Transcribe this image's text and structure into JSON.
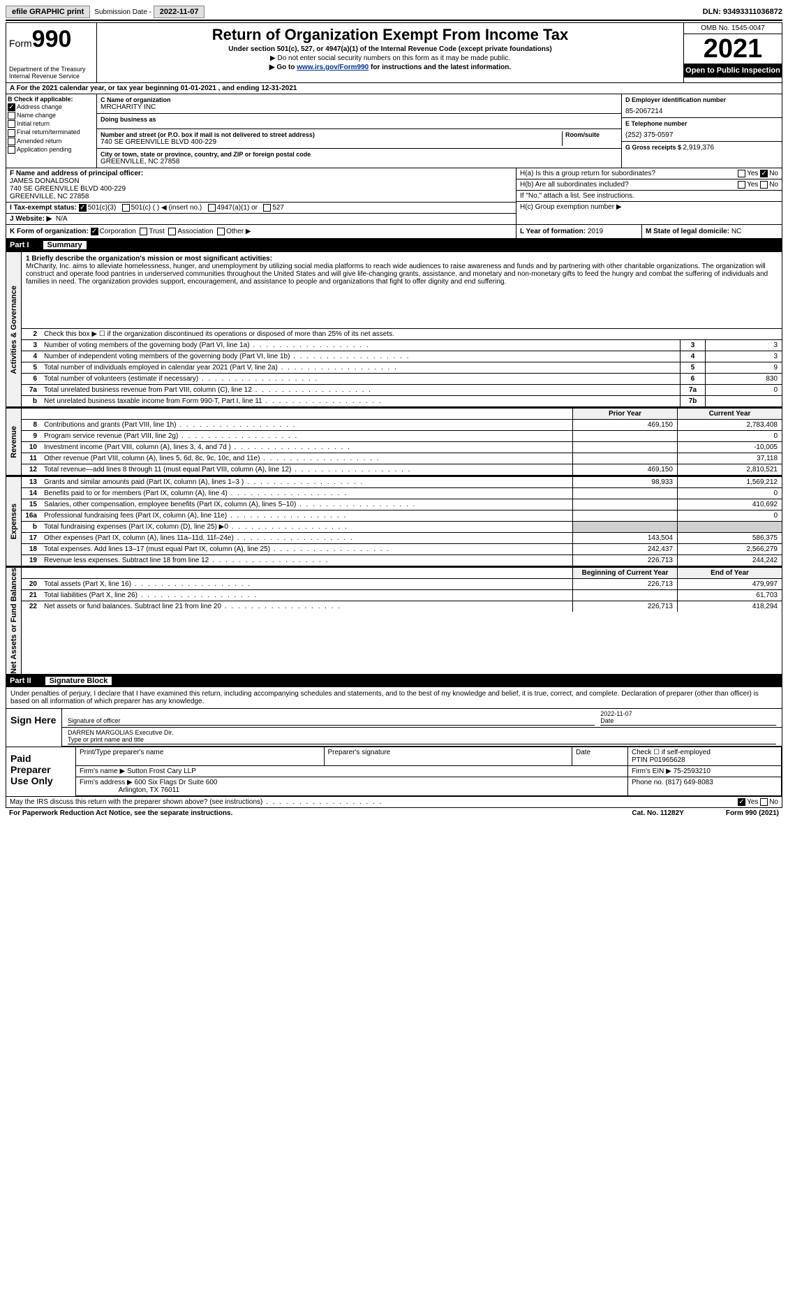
{
  "topbar": {
    "efile": "efile GRAPHIC print",
    "sub_lbl": "Submission Date - ",
    "sub_date": "2022-11-07",
    "dln_lbl": "DLN: ",
    "dln": "93493311036872"
  },
  "header": {
    "form_prefix": "Form",
    "form_num": "990",
    "dept": "Department of the Treasury\nInternal Revenue Service",
    "title": "Return of Organization Exempt From Income Tax",
    "sub1": "Under section 501(c), 527, or 4947(a)(1) of the Internal Revenue Code (except private foundations)",
    "sub2": "▶ Do not enter social security numbers on this form as it may be made public.",
    "sub3_pre": "▶ Go to ",
    "sub3_link": "www.irs.gov/Form990",
    "sub3_post": " for instructions and the latest information.",
    "omb": "OMB No. 1545-0047",
    "year": "2021",
    "inspect": "Open to Public Inspection"
  },
  "line_a": "A For the 2021 calendar year, or tax year beginning 01-01-2021  , and ending 12-31-2021",
  "col_b": {
    "hdr": "B Check if applicable:",
    "addr": "Address change",
    "name": "Name change",
    "init": "Initial return",
    "final": "Final return/terminated",
    "amend": "Amended return",
    "app": "Application pending"
  },
  "col_c": {
    "name_lbl": "C Name of organization",
    "name": "MRCHARITY INC",
    "dba_lbl": "Doing business as",
    "dba": "",
    "addr_lbl": "Number and street (or P.O. box if mail is not delivered to street address)",
    "addr": "740 SE GREENVILLE BLVD 400-229",
    "room_lbl": "Room/suite",
    "city_lbl": "City or town, state or province, country, and ZIP or foreign postal code",
    "city": "GREENVILLE, NC  27858"
  },
  "col_d": {
    "ein_lbl": "D Employer identification number",
    "ein": "85-2067214",
    "tel_lbl": "E Telephone number",
    "tel": "(252) 375-0597",
    "gross_lbl": "G Gross receipts $ ",
    "gross": "2,919,376"
  },
  "f": {
    "lbl": "F  Name and address of principal officer:",
    "name": "JAMES DONALDSON",
    "addr1": "740 SE GREENVILLE BLVD 400-229",
    "addr2": "GREENVILLE, NC  27858"
  },
  "h": {
    "a": "H(a)  Is this a group return for subordinates?",
    "b": "H(b)  Are all subordinates included?",
    "c": "H(c)  Group exemption number ▶",
    "note": "If \"No,\" attach a list. See instructions.",
    "yes": "Yes",
    "no": "No"
  },
  "i": {
    "lbl": "I    Tax-exempt status:",
    "o1": "501(c)(3)",
    "o2": "501(c) (  ) ◀ (insert no.)",
    "o3": "4947(a)(1) or",
    "o4": "527"
  },
  "j": {
    "lbl": "J   Website: ▶",
    "val": "N/A"
  },
  "k": {
    "lbl": "K Form of organization:",
    "corp": "Corporation",
    "trust": "Trust",
    "assoc": "Association",
    "other": "Other ▶"
  },
  "l": {
    "lbl": "L Year of formation: ",
    "val": "2019"
  },
  "m": {
    "lbl": "M State of legal domicile: ",
    "val": "NC"
  },
  "part1": {
    "hdr": "Part I",
    "ttl": "Summary",
    "tabs": {
      "ag": "Activities & Governance",
      "rev": "Revenue",
      "exp": "Expenses",
      "net": "Net Assets or Fund Balances"
    },
    "q1": "1  Briefly describe the organization's mission or most significant activities:",
    "mission": "MrCharity, Inc. aims to alleviate homelessness, hunger, and unemployment by utilizing social media platforms to reach wide audiences to raise awareness and funds and by partnering with other charitable organizations. The organization will construct and operate food pantries in underserved communities throughout the United States and will give life-changing grants, assistance, and monetary and non-monetary gifts to feed the hungry and combat the suffering of individuals and families in need. The organization provides support, encouragement, and assistance to people and organizations that fight to offer dignity and end suffering.",
    "q2": "Check this box ▶ ☐ if the organization discontinued its operations or disposed of more than 25% of its net assets.",
    "rows_ag": [
      {
        "n": "3",
        "d": "Number of voting members of the governing body (Part VI, line 1a)",
        "b": "3",
        "v": "3"
      },
      {
        "n": "4",
        "d": "Number of independent voting members of the governing body (Part VI, line 1b)",
        "b": "4",
        "v": "3"
      },
      {
        "n": "5",
        "d": "Total number of individuals employed in calendar year 2021 (Part V, line 2a)",
        "b": "5",
        "v": "9"
      },
      {
        "n": "6",
        "d": "Total number of volunteers (estimate if necessary)",
        "b": "6",
        "v": "830"
      },
      {
        "n": "7a",
        "d": "Total unrelated business revenue from Part VIII, column (C), line 12",
        "b": "7a",
        "v": "0"
      },
      {
        "n": "b",
        "d": "Net unrelated business taxable income from Form 990-T, Part I, line 11",
        "b": "7b",
        "v": ""
      }
    ],
    "col_hdrs": {
      "py": "Prior Year",
      "cy": "Current Year",
      "boy": "Beginning of Current Year",
      "eoy": "End of Year"
    },
    "rows_rev": [
      {
        "n": "8",
        "d": "Contributions and grants (Part VIII, line 1h)",
        "py": "469,150",
        "cy": "2,783,408"
      },
      {
        "n": "9",
        "d": "Program service revenue (Part VIII, line 2g)",
        "py": "",
        "cy": "0"
      },
      {
        "n": "10",
        "d": "Investment income (Part VIII, column (A), lines 3, 4, and 7d )",
        "py": "",
        "cy": "-10,005"
      },
      {
        "n": "11",
        "d": "Other revenue (Part VIII, column (A), lines 5, 6d, 8c, 9c, 10c, and 11e)",
        "py": "",
        "cy": "37,118"
      },
      {
        "n": "12",
        "d": "Total revenue—add lines 8 through 11 (must equal Part VIII, column (A), line 12)",
        "py": "469,150",
        "cy": "2,810,521"
      }
    ],
    "rows_exp": [
      {
        "n": "13",
        "d": "Grants and similar amounts paid (Part IX, column (A), lines 1–3 )",
        "py": "98,933",
        "cy": "1,569,212"
      },
      {
        "n": "14",
        "d": "Benefits paid to or for members (Part IX, column (A), line 4)",
        "py": "",
        "cy": "0"
      },
      {
        "n": "15",
        "d": "Salaries, other compensation, employee benefits (Part IX, column (A), lines 5–10)",
        "py": "",
        "cy": "410,692"
      },
      {
        "n": "16a",
        "d": "Professional fundraising fees (Part IX, column (A), line 11e)",
        "py": "",
        "cy": "0"
      },
      {
        "n": "b",
        "d": "Total fundraising expenses (Part IX, column (D), line 25) ▶0",
        "py": "shade",
        "cy": "shade"
      },
      {
        "n": "17",
        "d": "Other expenses (Part IX, column (A), lines 11a–11d, 11f–24e)",
        "py": "143,504",
        "cy": "586,375"
      },
      {
        "n": "18",
        "d": "Total expenses. Add lines 13–17 (must equal Part IX, column (A), line 25)",
        "py": "242,437",
        "cy": "2,566,279"
      },
      {
        "n": "19",
        "d": "Revenue less expenses. Subtract line 18 from line 12",
        "py": "226,713",
        "cy": "244,242"
      }
    ],
    "rows_net": [
      {
        "n": "20",
        "d": "Total assets (Part X, line 16)",
        "py": "226,713",
        "cy": "479,997"
      },
      {
        "n": "21",
        "d": "Total liabilities (Part X, line 26)",
        "py": "",
        "cy": "61,703"
      },
      {
        "n": "22",
        "d": "Net assets or fund balances. Subtract line 21 from line 20",
        "py": "226,713",
        "cy": "418,294"
      }
    ]
  },
  "part2": {
    "hdr": "Part II",
    "ttl": "Signature Block",
    "intro": "Under penalties of perjury, I declare that I have examined this return, including accompanying schedules and statements, and to the best of my knowledge and belief, it is true, correct, and complete. Declaration of preparer (other than officer) is based on all information of which preparer has any knowledge.",
    "sign_here": "Sign Here",
    "sig_officer": "Signature of officer",
    "date": "Date",
    "sig_date": "2022-11-07",
    "name_title": "DARREN MARGOLIAS Executive Dir.",
    "name_title_lbl": "Type or print name and title",
    "paid": "Paid Preparer Use Only",
    "prep_name_lbl": "Print/Type preparer's name",
    "prep_sig_lbl": "Preparer's signature",
    "prep_date_lbl": "Date",
    "check_self": "Check ☐ if self-employed",
    "ptin_lbl": "PTIN",
    "ptin": "P01965628",
    "firm_name_lbl": "Firm's name   ▶",
    "firm_name": "Sutton Frost Cary LLP",
    "firm_ein_lbl": "Firm's EIN ▶",
    "firm_ein": "75-2593210",
    "firm_addr_lbl": "Firm's address ▶",
    "firm_addr1": "600 Six Flags Dr Suite 600",
    "firm_addr2": "Arlington, TX  76011",
    "phone_lbl": "Phone no. ",
    "phone": "(817) 649-8083"
  },
  "footer": {
    "discuss": "May the IRS discuss this return with the preparer shown above? (see instructions)",
    "pra": "For Paperwork Reduction Act Notice, see the separate instructions.",
    "cat": "Cat. No. 11282Y",
    "form": "Form 990 (2021)"
  }
}
